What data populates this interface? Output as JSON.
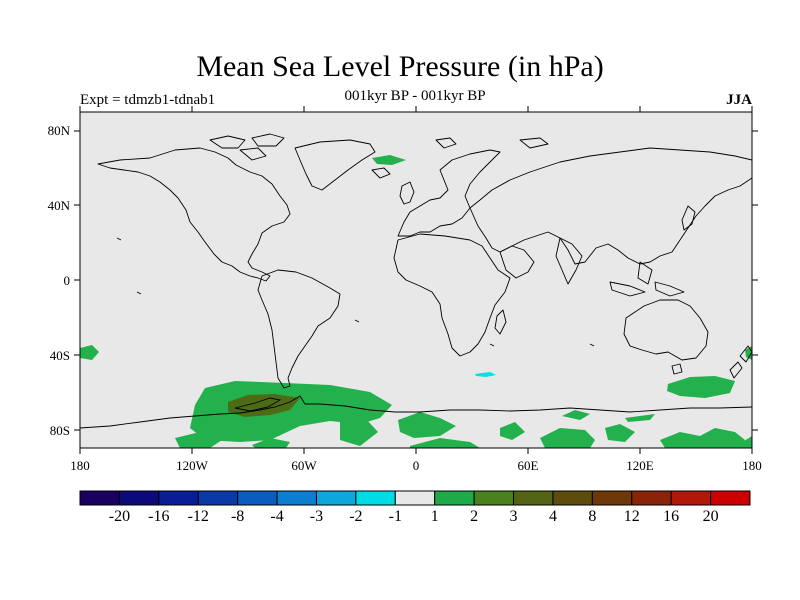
{
  "title": "Mean Sea Level Pressure (in hPa)",
  "left_label": "Expt = tdmzb1-tdnab1",
  "center_label": "001kyr BP - 001kyr BP",
  "right_label": "JJA",
  "y_axis_labels": [
    "80N",
    "40N",
    "0",
    "40S",
    "80S"
  ],
  "x_axis_labels": [
    "180",
    "120W",
    "60W",
    "0",
    "60E",
    "120E",
    "180"
  ],
  "colorbar": {
    "colors": [
      "#1a0060",
      "#0a0a7a",
      "#0a1d96",
      "#0a3aa8",
      "#0a5cc0",
      "#0a7ed0",
      "#0aa8dc",
      "#00dce6",
      "#e8e8e8",
      "#1faa4a",
      "#4a801e",
      "#536414",
      "#5e4c0c",
      "#6e3808",
      "#8a2408",
      "#b01808",
      "#cc0000"
    ],
    "labels": [
      "-20",
      "-16",
      "-12",
      "-8",
      "-4",
      "-3",
      "-2",
      "-1",
      "1",
      "2",
      "3",
      "4",
      "8",
      "12",
      "16",
      "20"
    ]
  },
  "colors": {
    "background_field": "#e8e8e8",
    "positive_anomaly": "#22b14c",
    "strong_anomaly": "#4d6b14",
    "negative_anomaly": "#00e0e8"
  }
}
